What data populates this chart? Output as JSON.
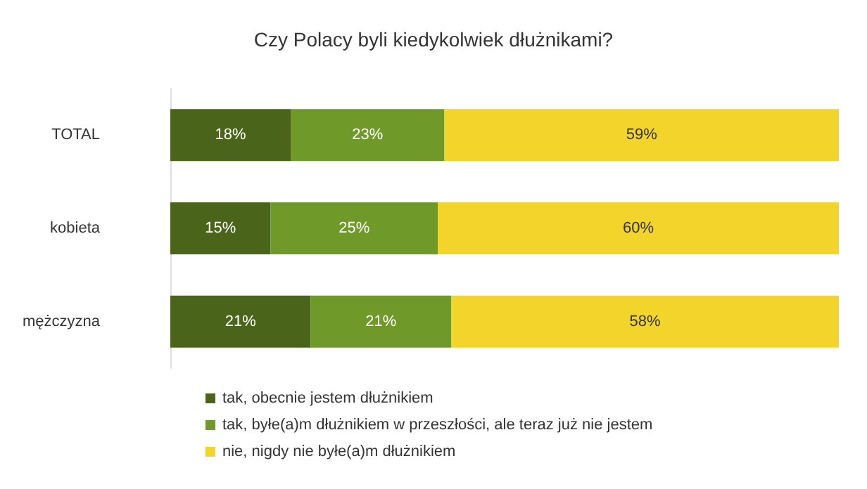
{
  "chart_data": {
    "type": "bar",
    "orientation": "horizontal",
    "stacked": true,
    "title": "Czy Polacy byli kiedykolwiek dłużnikami?",
    "categories": [
      "TOTAL",
      "kobieta",
      "mężczyzna"
    ],
    "series": [
      {
        "name": "tak, obecnie jestem dłużnikiem",
        "color": "#4a6519",
        "values": [
          18,
          15,
          21
        ],
        "value_labels": [
          "18%",
          "15%",
          "21%"
        ]
      },
      {
        "name": "tak, byłe(a)m dłużnikiem w przeszłości, ale teraz już nie jestem",
        "color": "#6f9a29",
        "values": [
          23,
          25,
          21
        ],
        "value_labels": [
          "23%",
          "25%",
          "21%"
        ]
      },
      {
        "name": "nie, nigdy nie byłe(a)m dłużnikiem",
        "color": "#f2d42a",
        "values": [
          59,
          60,
          58
        ],
        "value_labels": [
          "59%",
          "60%",
          "58%"
        ]
      }
    ],
    "legend": "bottom",
    "grid": false,
    "tick_labels": "y"
  }
}
